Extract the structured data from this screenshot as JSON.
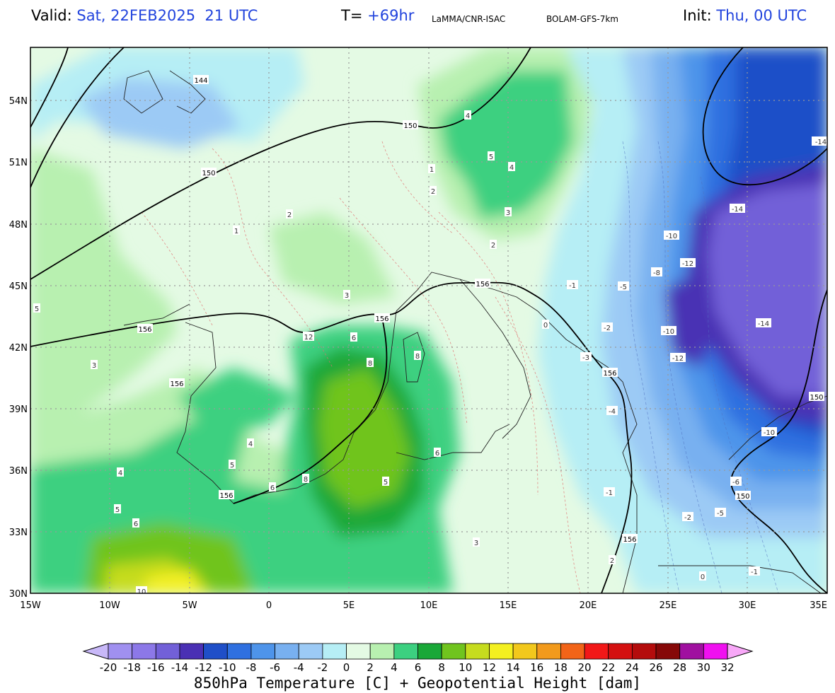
{
  "header": {
    "valid_label": "Valid:",
    "valid_value": "Sat, 22FEB2025  21 UTC",
    "t_label": "T=",
    "t_value": "+69hr",
    "source": "LaMMA/CNR-ISAC",
    "model": "BOLAM-GFS-7km",
    "init_label": "Init:",
    "init_value": "Thu, 00 UTC"
  },
  "axes": {
    "lon_labels": [
      "15W",
      "10W",
      "5W",
      "0",
      "5E",
      "10E",
      "15E",
      "20E",
      "25E",
      "30E",
      "35E"
    ],
    "lat_labels": [
      "54N",
      "51N",
      "48N",
      "45N",
      "42N",
      "39N",
      "36N",
      "33N",
      "30N"
    ]
  },
  "colorbar": {
    "ticks": [
      "-20",
      "-18",
      "-16",
      "-14",
      "-12",
      "-10",
      "-8",
      "-6",
      "-4",
      "-2",
      "0",
      "2",
      "4",
      "6",
      "8",
      "10",
      "12",
      "14",
      "16",
      "18",
      "20",
      "22",
      "24",
      "26",
      "28",
      "30",
      "32"
    ],
    "colors": [
      "#a090f0",
      "#8c78e8",
      "#7260d8",
      "#4a30b4",
      "#1f4fc8",
      "#2f70e0",
      "#4e94ea",
      "#78b0f0",
      "#9ccaf5",
      "#b6eef5",
      "#e4fae4",
      "#b8f0b0",
      "#3cd080",
      "#1aa838",
      "#70c41e",
      "#c6dc1e",
      "#f4f020",
      "#f2c81c",
      "#f29a1c",
      "#f26418",
      "#f21818",
      "#d41010",
      "#b40c0c",
      "#860808",
      "#a010a0",
      "#f010f0"
    ],
    "under_color": "#c8b8f8",
    "over_color": "#f8a8f8",
    "title": "850hPa Temperature [C] + Geopotential Height [dam]"
  },
  "contour_labels": {
    "geopotential": [
      "144",
      "150",
      "150",
      "156",
      "156",
      "156",
      "156",
      "156",
      "156",
      "156",
      "150",
      "150",
      "150"
    ],
    "temperature": [
      "5",
      "3",
      "4",
      "5",
      "6",
      "8",
      "10",
      "12",
      "6",
      "8",
      "8",
      "6",
      "4",
      "5",
      "6",
      "5",
      "3",
      "2",
      "1",
      "0",
      "-1",
      "-2",
      "-3",
      "-4",
      "-5",
      "-8",
      "-10",
      "-12",
      "-14",
      "-14",
      "-14",
      "-10",
      "-12",
      "-10",
      "-6",
      "-5",
      "-2",
      "-1",
      "-1",
      "0",
      "2",
      "4",
      "3",
      "5",
      "4",
      "3",
      "2",
      "1",
      "2"
    ]
  }
}
